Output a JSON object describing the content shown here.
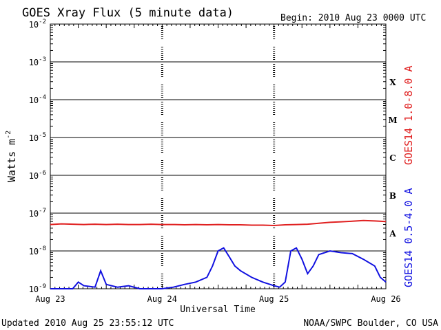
{
  "chart_data": {
    "type": "line",
    "title": "GOES Xray Flux (5 minute data)",
    "begin_label": "Begin:  2010 Aug 23 0000 UTC",
    "ylabel": "Watts m",
    "ylabel_sup": "-2",
    "xlabel": "Universal Time",
    "y_scale": "log",
    "ylim": [
      1e-09,
      0.01
    ],
    "y_ticks": [
      {
        "base": "10",
        "exp": "-2",
        "value": 0.01
      },
      {
        "base": "10",
        "exp": "-3",
        "value": 0.001
      },
      {
        "base": "10",
        "exp": "-4",
        "value": 0.0001
      },
      {
        "base": "10",
        "exp": "-5",
        "value": 1e-05
      },
      {
        "base": "10",
        "exp": "-6",
        "value": 1e-06
      },
      {
        "base": "10",
        "exp": "-7",
        "value": 1e-07
      },
      {
        "base": "10",
        "exp": "-8",
        "value": 1e-08
      },
      {
        "base": "10",
        "exp": "-9",
        "value": 1e-09
      }
    ],
    "x_ticks": [
      "Aug 23",
      "Aug 24",
      "Aug 25",
      "Aug 26"
    ],
    "xlim_days": [
      0,
      3
    ],
    "flare_classes": [
      {
        "label": "X",
        "value": 0.0003
      },
      {
        "label": "M",
        "value": 3e-05
      },
      {
        "label": "C",
        "value": 3e-06
      },
      {
        "label": "B",
        "value": 3e-07
      },
      {
        "label": "A",
        "value": 3e-08
      }
    ],
    "grid": true,
    "series": [
      {
        "name": "GOES14 1.0-8.0 A",
        "color": "#e02020",
        "x_days": [
          0.0,
          0.1,
          0.2,
          0.3,
          0.4,
          0.5,
          0.6,
          0.7,
          0.8,
          0.9,
          1.0,
          1.1,
          1.2,
          1.3,
          1.4,
          1.5,
          1.6,
          1.7,
          1.8,
          1.9,
          2.0,
          2.1,
          2.2,
          2.3,
          2.4,
          2.5,
          2.6,
          2.7,
          2.8,
          2.9,
          3.0
        ],
        "values": [
          5e-08,
          5.2e-08,
          5.1e-08,
          5e-08,
          5.1e-08,
          5e-08,
          5.1e-08,
          5e-08,
          5e-08,
          5.1e-08,
          5e-08,
          5e-08,
          4.9e-08,
          5e-08,
          4.9e-08,
          5e-08,
          4.9e-08,
          4.9e-08,
          4.8e-08,
          4.8e-08,
          4.7e-08,
          4.9e-08,
          5e-08,
          5.1e-08,
          5.4e-08,
          5.7e-08,
          5.9e-08,
          6.1e-08,
          6.4e-08,
          6.2e-08,
          6e-08
        ]
      },
      {
        "name": "GOES14 0.5-4.0 A",
        "color": "#1010e0",
        "x_days": [
          0.0,
          0.1,
          0.2,
          0.25,
          0.3,
          0.4,
          0.45,
          0.5,
          0.6,
          0.7,
          0.8,
          0.9,
          1.0,
          1.1,
          1.2,
          1.3,
          1.4,
          1.45,
          1.5,
          1.55,
          1.6,
          1.65,
          1.7,
          1.8,
          1.9,
          2.0,
          2.05,
          2.1,
          2.15,
          2.2,
          2.25,
          2.3,
          2.35,
          2.4,
          2.5,
          2.6,
          2.7,
          2.8,
          2.9,
          2.95,
          3.0
        ],
        "values": [
          1e-09,
          1e-09,
          1e-09,
          1.5e-09,
          1.2e-09,
          1.1e-09,
          3e-09,
          1.3e-09,
          1.1e-09,
          1.2e-09,
          1e-09,
          1e-09,
          1e-09,
          1.1e-09,
          1.3e-09,
          1.5e-09,
          2e-09,
          4e-09,
          1e-08,
          1.2e-08,
          7e-09,
          4e-09,
          3e-09,
          2e-09,
          1.5e-09,
          1.2e-09,
          1.1e-09,
          1.5e-09,
          1e-08,
          1.2e-08,
          6e-09,
          2.5e-09,
          4e-09,
          8e-09,
          1e-08,
          9e-09,
          8.5e-09,
          6e-09,
          4e-09,
          2e-09,
          1.5e-09
        ]
      }
    ]
  },
  "footer": {
    "updated": "Updated 2010 Aug 25 23:55:12 UTC",
    "credit": "NOAA/SWPC Boulder, CO USA"
  }
}
